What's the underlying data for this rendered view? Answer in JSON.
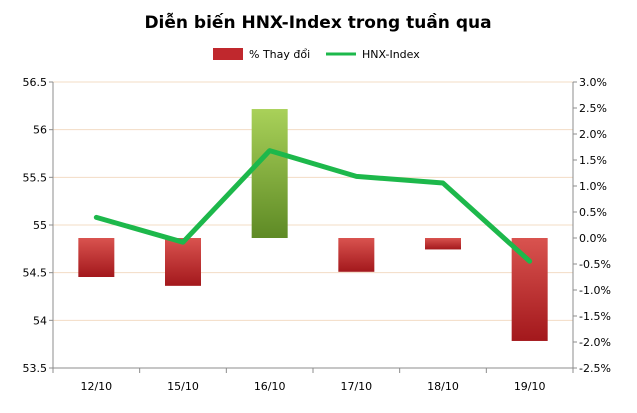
{
  "chart_data": {
    "type": "bar+line",
    "title": "Diễn biến HNX-Index trong tuần qua",
    "categories": [
      "12/10",
      "15/10",
      "16/10",
      "17/10",
      "18/10",
      "19/10"
    ],
    "series": [
      {
        "name": "% Thay đổi",
        "kind": "bar",
        "axis": "right",
        "values": [
          -0.75,
          -0.92,
          2.48,
          -0.65,
          -0.22,
          -1.98
        ],
        "positive_color": "#8dc63f",
        "negative_color": "#c0282d"
      },
      {
        "name": "HNX-Index",
        "kind": "line",
        "axis": "left",
        "values": [
          55.08,
          54.82,
          55.78,
          55.51,
          55.44,
          54.62
        ],
        "color": "#1db84b"
      }
    ],
    "left_axis": {
      "min": 53.5,
      "max": 56.5,
      "ticks": [
        "53.5",
        "54",
        "54.5",
        "55",
        "55.5",
        "56",
        "56.5"
      ],
      "tick_values": [
        53.5,
        54,
        54.5,
        55,
        55.5,
        56,
        56.5
      ]
    },
    "right_axis": {
      "min": -2.5,
      "max": 3.0,
      "ticks": [
        "-2.5%",
        "-2.0%",
        "-1.5%",
        "-1.0%",
        "-0.5%",
        "0.0%",
        "0.5%",
        "1.0%",
        "1.5%",
        "2.0%",
        "2.5%",
        "3.0%"
      ],
      "tick_values": [
        -2.5,
        -2.0,
        -1.5,
        -1.0,
        -0.5,
        0.0,
        0.5,
        1.0,
        1.5,
        2.0,
        2.5,
        3.0
      ]
    },
    "legend_position": "top",
    "grid": true
  }
}
